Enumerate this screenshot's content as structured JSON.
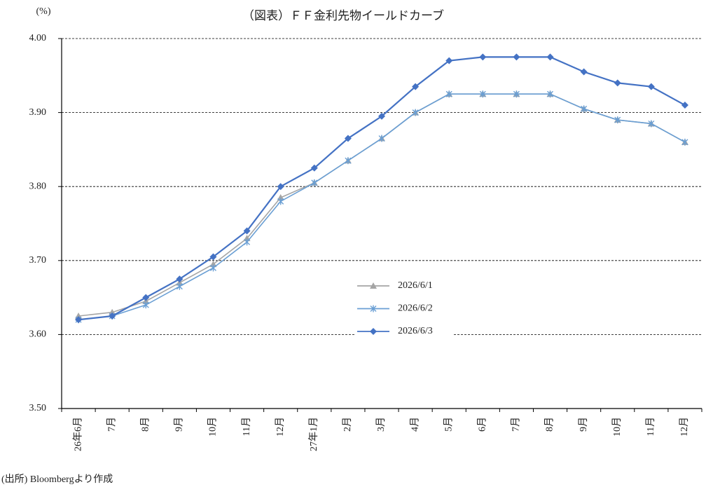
{
  "chart_data": {
    "type": "line",
    "title": "（図表）ＦＦ金利先物イールドカーブ",
    "y_label": "(%)",
    "source": "(出所) Bloombergより作成",
    "categories": [
      "26年6月",
      "7月",
      "8月",
      "9月",
      "10月",
      "11月",
      "12月",
      "27年1月",
      "2月",
      "3月",
      "4月",
      "5月",
      "6月",
      "7月",
      "8月",
      "9月",
      "10月",
      "11月",
      "12月"
    ],
    "series": [
      {
        "name": "2026/6/1",
        "color": "#a5a5a5",
        "marker": "triangle",
        "values": [
          3.625,
          3.63,
          3.645,
          3.67,
          3.695,
          3.73,
          3.785,
          3.805,
          3.835,
          3.865,
          3.9,
          3.925,
          3.925,
          3.925,
          3.925,
          3.905,
          3.89,
          3.885,
          3.86
        ]
      },
      {
        "name": "2026/6/2",
        "color": "#6a9fd4",
        "marker": "star",
        "values": [
          3.62,
          3.625,
          3.64,
          3.665,
          3.69,
          3.725,
          3.78,
          3.805,
          3.835,
          3.865,
          3.9,
          3.925,
          3.925,
          3.925,
          3.925,
          3.905,
          3.89,
          3.885,
          3.86
        ]
      },
      {
        "name": "2026/6/3",
        "color": "#4472c4",
        "marker": "diamond",
        "values": [
          3.62,
          3.625,
          3.65,
          3.675,
          3.705,
          3.74,
          3.8,
          3.825,
          3.865,
          3.895,
          3.935,
          3.97,
          3.975,
          3.975,
          3.975,
          3.955,
          3.94,
          3.935,
          3.91
        ]
      }
    ],
    "ylim": [
      3.5,
      4.0
    ],
    "yticks": [
      {
        "value": 3.5,
        "label": "3.50"
      },
      {
        "value": 3.6,
        "label": "3.60"
      },
      {
        "value": 3.7,
        "label": "3.70"
      },
      {
        "value": 3.8,
        "label": "3.80"
      },
      {
        "value": 3.9,
        "label": "3.90"
      },
      {
        "value": 4.0,
        "label": "4.00"
      }
    ],
    "grid": true,
    "legend": "center"
  }
}
